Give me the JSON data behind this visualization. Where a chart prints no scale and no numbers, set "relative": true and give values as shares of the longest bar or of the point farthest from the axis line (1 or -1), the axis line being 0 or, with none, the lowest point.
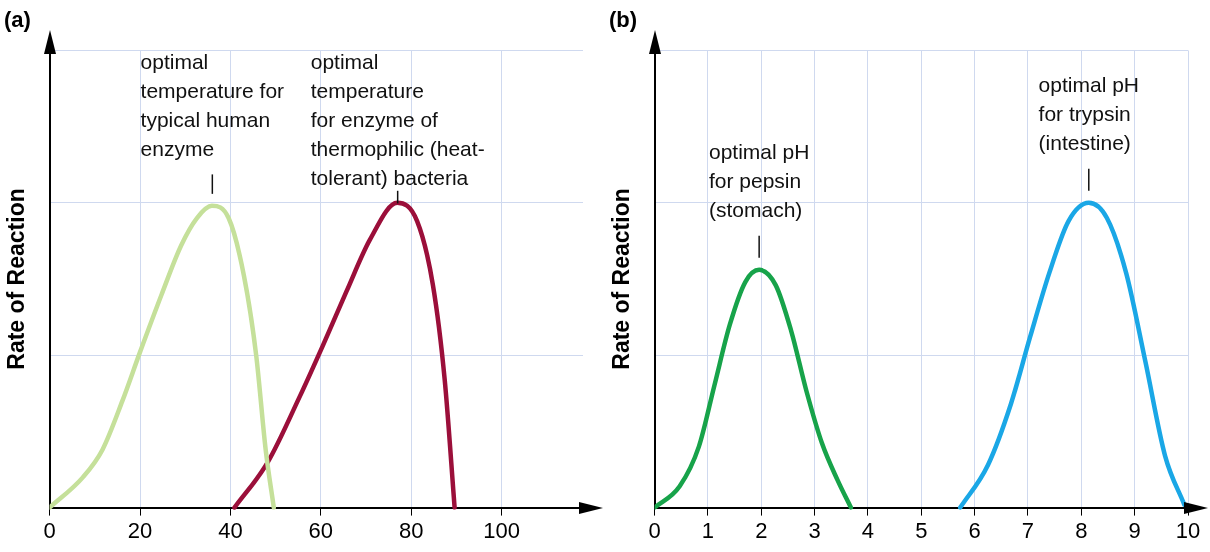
{
  "chart_data": [
    {
      "type": "line",
      "title": "(a)",
      "ylabel": "Rate of Reaction",
      "relative": true,
      "grid": true,
      "xlim": [
        0,
        118
      ],
      "xticks": [
        0,
        20,
        40,
        60,
        80,
        100
      ],
      "series": [
        {
          "color": "#c5e09a",
          "x": [
            0,
            7.4,
            11.7,
            16.1,
            20,
            24.8,
            29.1,
            32.6,
            35.9,
            39.6,
            43,
            45.7,
            47.8,
            49.6
          ],
          "values": [
            0,
            0.1,
            0.19,
            0.35,
            0.51,
            0.7,
            0.86,
            0.95,
            0.99,
            0.95,
            0.76,
            0.5,
            0.19,
            0
          ]
        },
        {
          "color": "#9b0f3a",
          "x": [
            40.9,
            48.3,
            55.2,
            60.4,
            65.7,
            70.9,
            76.9,
            81.3,
            84.8,
            87.4,
            89.6
          ],
          "values": [
            0,
            0.15,
            0.36,
            0.53,
            0.71,
            0.88,
            1,
            0.94,
            0.73,
            0.42,
            0
          ]
        }
      ],
      "annotations": [
        {
          "text": "optimal\ntemperature for\ntypical human\nenzyme",
          "x": 36,
          "y": 0.99
        },
        {
          "text": "optimal\ntemperature\nfor enzyme of\nthermophilic (heat-\ntolerant) bacteria",
          "x": 77,
          "y": 1
        }
      ]
    },
    {
      "type": "line",
      "title": "(b)",
      "ylabel": "Rate of Reaction",
      "relative": true,
      "grid": true,
      "xlim": [
        0,
        10
      ],
      "xticks": [
        0,
        1,
        2,
        3,
        4,
        5,
        6,
        7,
        8,
        9,
        10
      ],
      "series": [
        {
          "color": "#17a34a",
          "x": [
            0,
            0.47,
            0.83,
            1.12,
            1.41,
            1.7,
            1.96,
            2.27,
            2.56,
            2.85,
            3.14,
            3.43,
            3.68
          ],
          "values": [
            0,
            0.07,
            0.2,
            0.4,
            0.6,
            0.74,
            0.78,
            0.73,
            0.58,
            0.38,
            0.21,
            0.09,
            0
          ]
        },
        {
          "color": "#1aa7e6",
          "x": [
            5.73,
            6.25,
            6.68,
            7.04,
            7.4,
            7.76,
            8.14,
            8.48,
            8.84,
            9.2,
            9.57,
            9.93
          ],
          "values": [
            0,
            0.14,
            0.34,
            0.56,
            0.77,
            0.94,
            1,
            0.95,
            0.77,
            0.48,
            0.17,
            0.01
          ]
        }
      ],
      "annotations": [
        {
          "text": "optimal pH\nfor pepsin\n(stomach)",
          "x": 1.96,
          "y": 0.78
        },
        {
          "text": "optimal pH\nfor trypsin\n(intestine)",
          "x": 8.14,
          "y": 1
        }
      ]
    }
  ]
}
